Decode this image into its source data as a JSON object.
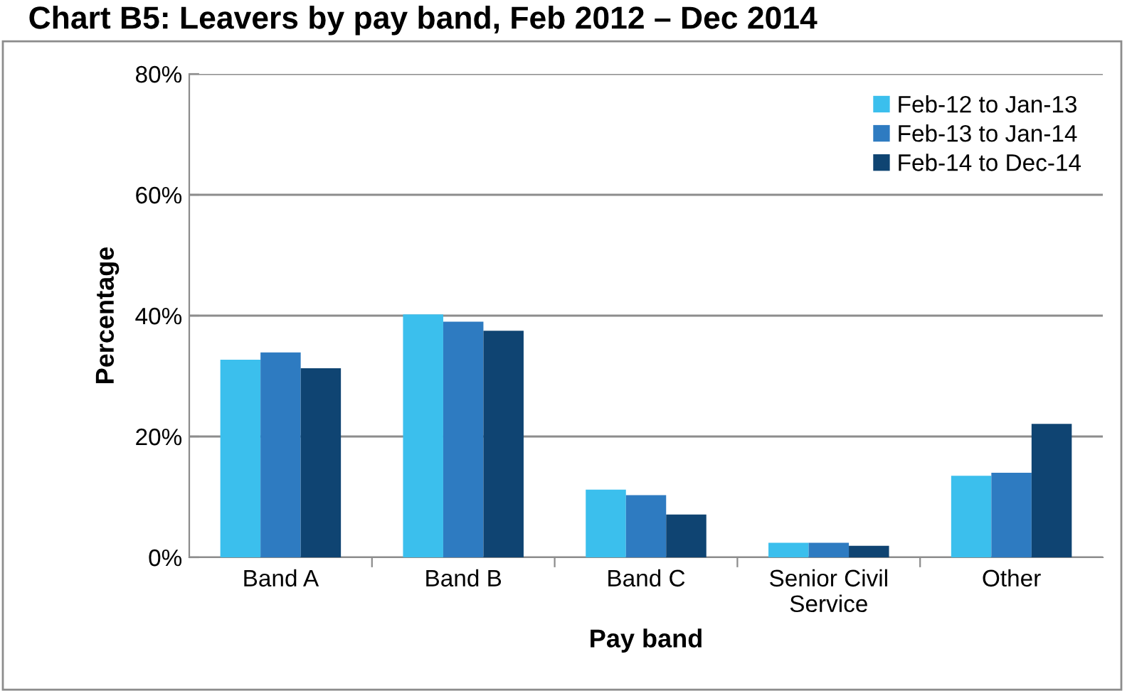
{
  "chart_data": {
    "type": "bar",
    "title": "Chart B5: Leavers by pay band, Feb 2012 – Dec 2014",
    "xlabel": "Pay band",
    "ylabel": "Percentage",
    "categories": [
      "Band A",
      "Band B",
      "Band C",
      "Senior Civil\nService",
      "Other"
    ],
    "series": [
      {
        "name": "Feb-12 to Jan-13",
        "color": "#3bbfed",
        "values": [
          32.7,
          40.2,
          11.2,
          2.4,
          13.5
        ]
      },
      {
        "name": "Feb-13 to Jan-14",
        "color": "#2e7bc1",
        "values": [
          33.9,
          39.0,
          10.3,
          2.4,
          14.0
        ]
      },
      {
        "name": "Feb-14 to Dec-14",
        "color": "#0f4472",
        "values": [
          31.3,
          37.5,
          7.1,
          1.9,
          22.1
        ]
      }
    ],
    "ylim": [
      0,
      80
    ],
    "yticks": [
      {
        "value": 0,
        "label": "0%"
      },
      {
        "value": 20,
        "label": "20%"
      },
      {
        "value": 40,
        "label": "40%"
      },
      {
        "value": 60,
        "label": "60%"
      },
      {
        "value": 80,
        "label": "80%"
      }
    ],
    "grid": "y",
    "legend": "top right"
  }
}
